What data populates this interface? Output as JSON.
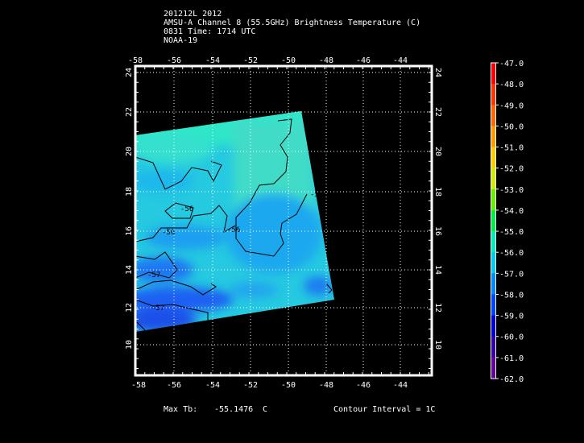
{
  "header": {
    "lines": [
      "201212L 2012",
      "AMSU-A Channel 8 (55.5GHz) Brightness Temperature (C)",
      "0831 Time: 1714 UTC",
      "NOAA-19"
    ]
  },
  "map": {
    "lon_ticks": [
      "-58",
      "-56",
      "-54",
      "-52",
      "-50",
      "-48",
      "-46",
      "-44"
    ],
    "lat_ticks": [
      "24",
      "22",
      "20",
      "18",
      "16",
      "14",
      "12",
      "10"
    ],
    "contour_labels": [
      "-56",
      "-56",
      "-56",
      "-57",
      "-57",
      "-56"
    ]
  },
  "colorbar": {
    "labels": [
      "-47.0",
      "-48.0",
      "-49.0",
      "-50.0",
      "-51.0",
      "-52.0",
      "-53.0",
      "-54.0",
      "-55.0",
      "-56.0",
      "-57.0",
      "-58.0",
      "-59.0",
      "-60.0",
      "-61.0",
      "-62.0"
    ],
    "colors": [
      "#ff0000",
      "#ff3300",
      "#ff6600",
      "#ff9900",
      "#ffcc00",
      "#ccee00",
      "#66ee00",
      "#00ee44",
      "#00eebb",
      "#00ccee",
      "#0088ff",
      "#0044ff",
      "#0000dd",
      "#3300aa",
      "#660099",
      "#880088"
    ]
  },
  "footer": {
    "max_label": "Max Tb:",
    "max_value": "-55.1476",
    "max_unit": "C",
    "contour_interval": "Contour Interval = 1C"
  }
}
